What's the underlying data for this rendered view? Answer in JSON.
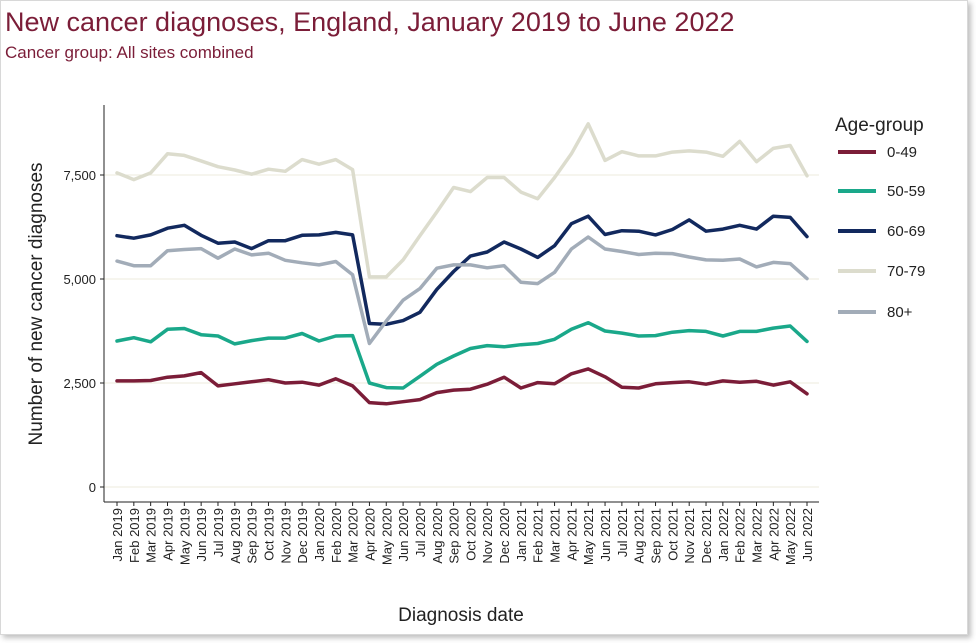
{
  "title": "New cancer diagnoses, England, January 2019 to June 2022",
  "subtitle": "Cancer group: All sites combined",
  "chart_data": {
    "type": "line",
    "xlabel": "Diagnosis date",
    "ylabel": "Number of new cancer diagnoses",
    "ylim": [
      0,
      9000
    ],
    "yticks": [
      0,
      2500,
      5000,
      7500
    ],
    "ytick_labels": [
      "0",
      "2,500",
      "5,000",
      "7,500"
    ],
    "grid": "horizontal",
    "legend_title": "Age-group",
    "legend_position": "right",
    "categories": [
      "Jan 2019",
      "Feb 2019",
      "Mar 2019",
      "Apr 2019",
      "May 2019",
      "Jun 2019",
      "Jul 2019",
      "Aug 2019",
      "Sep 2019",
      "Oct 2019",
      "Nov 2019",
      "Dec 2019",
      "Jan 2020",
      "Feb 2020",
      "Mar 2020",
      "Apr 2020",
      "May 2020",
      "Jun 2020",
      "Jul 2020",
      "Aug 2020",
      "Sep 2020",
      "Oct 2020",
      "Nov 2020",
      "Dec 2020",
      "Jan 2021",
      "Feb 2021",
      "Mar 2021",
      "Apr 2021",
      "May 2021",
      "Jun 2021",
      "Jul 2021",
      "Aug 2021",
      "Sep 2021",
      "Oct 2021",
      "Nov 2021",
      "Dec 2021",
      "Jan 2022",
      "Feb 2022",
      "Mar 2022",
      "Apr 2022",
      "May 2022",
      "Jun 2022"
    ],
    "series": [
      {
        "name": "0-49",
        "color": "#7b1d38",
        "values": [
          2550,
          2550,
          2560,
          2640,
          2670,
          2750,
          2430,
          2480,
          2530,
          2580,
          2500,
          2520,
          2450,
          2600,
          2430,
          2030,
          2000,
          2050,
          2100,
          2270,
          2330,
          2350,
          2470,
          2640,
          2380,
          2510,
          2480,
          2720,
          2840,
          2650,
          2400,
          2380,
          2480,
          2510,
          2530,
          2470,
          2550,
          2520,
          2540,
          2450,
          2530,
          2240
        ]
      },
      {
        "name": "50-59",
        "color": "#1aa88a",
        "values": [
          3510,
          3590,
          3490,
          3790,
          3810,
          3660,
          3630,
          3440,
          3520,
          3580,
          3580,
          3690,
          3510,
          3630,
          3640,
          2500,
          2390,
          2380,
          2660,
          2950,
          3150,
          3330,
          3400,
          3370,
          3420,
          3450,
          3550,
          3790,
          3950,
          3750,
          3700,
          3630,
          3640,
          3720,
          3760,
          3740,
          3630,
          3740,
          3740,
          3820,
          3870,
          3500
        ]
      },
      {
        "name": "60-69",
        "color": "#12295e",
        "values": [
          6040,
          5980,
          6060,
          6220,
          6290,
          6050,
          5860,
          5890,
          5730,
          5920,
          5920,
          6050,
          6060,
          6120,
          6060,
          3930,
          3910,
          4000,
          4200,
          4750,
          5180,
          5550,
          5650,
          5890,
          5720,
          5520,
          5800,
          6330,
          6510,
          6070,
          6160,
          6150,
          6060,
          6190,
          6420,
          6150,
          6200,
          6290,
          6200,
          6510,
          6480,
          6020
        ]
      },
      {
        "name": "70-79",
        "color": "#dcdccd",
        "values": [
          7550,
          7390,
          7550,
          8010,
          7970,
          7840,
          7700,
          7620,
          7520,
          7640,
          7590,
          7870,
          7760,
          7870,
          7630,
          5050,
          5050,
          5460,
          6040,
          6610,
          7200,
          7100,
          7440,
          7440,
          7090,
          6930,
          7440,
          8010,
          8730,
          7850,
          8060,
          7960,
          7960,
          8050,
          8080,
          8050,
          7950,
          8310,
          7820,
          8140,
          8210,
          7480
        ]
      },
      {
        "name": "80+",
        "color": "#a2acb8",
        "values": [
          5430,
          5320,
          5320,
          5680,
          5710,
          5730,
          5500,
          5720,
          5580,
          5620,
          5450,
          5390,
          5340,
          5420,
          5100,
          3450,
          3990,
          4490,
          4770,
          5260,
          5340,
          5340,
          5270,
          5320,
          4920,
          4890,
          5160,
          5720,
          6010,
          5720,
          5660,
          5590,
          5620,
          5610,
          5530,
          5460,
          5450,
          5480,
          5290,
          5400,
          5370,
          5010
        ]
      }
    ]
  }
}
